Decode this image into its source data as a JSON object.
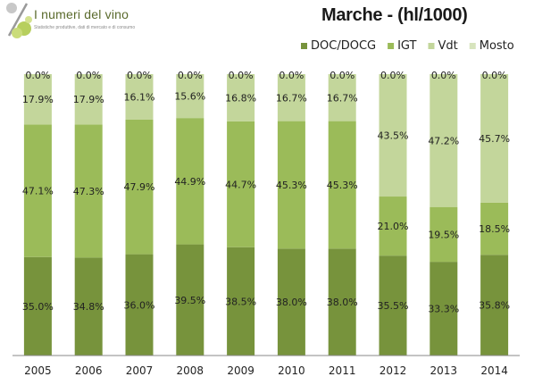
{
  "logo": {
    "title": "I numeri del vino",
    "subtitle": "Statistiche produttive, dati di mercato e di consumo"
  },
  "colors": {
    "DOC/DOCG": "#77933c",
    "IGT": "#9bbb59",
    "Vdt": "#c3d69b",
    "Mosto": "#d7e4bd"
  },
  "chart_data": {
    "type": "bar",
    "stacked": true,
    "title": "Marche - (hl/1000)",
    "categories": [
      "2005",
      "2006",
      "2007",
      "2008",
      "2009",
      "2010",
      "2011",
      "2012",
      "2013",
      "2014"
    ],
    "series": [
      {
        "name": "DOC/DOCG",
        "values": [
          35.0,
          34.8,
          36.0,
          39.5,
          38.5,
          38.0,
          38.0,
          35.5,
          33.3,
          35.8
        ]
      },
      {
        "name": "IGT",
        "values": [
          47.1,
          47.3,
          47.9,
          44.9,
          44.7,
          45.3,
          45.3,
          21.0,
          19.5,
          18.5
        ]
      },
      {
        "name": "Vdt",
        "values": [
          17.9,
          17.9,
          16.1,
          15.6,
          16.8,
          16.7,
          16.7,
          43.5,
          47.2,
          45.7
        ]
      },
      {
        "name": "Mosto",
        "values": [
          0.0,
          0.0,
          0.0,
          0.0,
          0.0,
          0.0,
          0.0,
          0.0,
          0.0,
          0.0
        ]
      }
    ],
    "data_labels": [
      [
        "35.0%",
        "34.8%",
        "36.0%",
        "39.5%",
        "38.5%",
        "38.0%",
        "38.0%",
        "35.5%",
        "33.3%",
        "35.8%"
      ],
      [
        "47.1%",
        "47.3%",
        "47.9%",
        "44.9%",
        "44.7%",
        "45.3%",
        "45.3%",
        "21.0%",
        "19.5%",
        "18.5%"
      ],
      [
        "17.9%",
        "17.9%",
        "16.1%",
        "15.6%",
        "16.8%",
        "16.7%",
        "16.7%",
        "43.5%",
        "47.2%",
        "45.7%"
      ],
      [
        "0.0%",
        "0.0%",
        "0.0%",
        "0.0%",
        "0.0%",
        "0.0%",
        "0.0%",
        "0.0%",
        "0.0%",
        "0.0%"
      ]
    ],
    "ylim": [
      0,
      100
    ],
    "legend_position": "top-right",
    "grid": false
  }
}
